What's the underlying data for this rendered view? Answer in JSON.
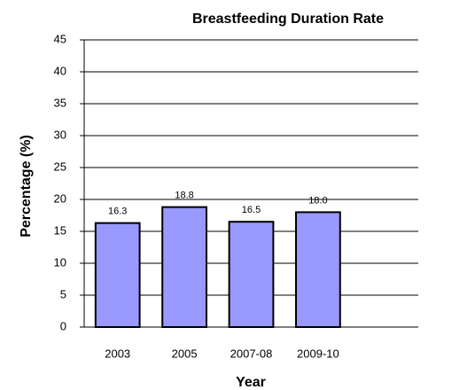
{
  "chart_data": {
    "type": "bar",
    "title": "Breastfeeding Duration Rate",
    "xlabel": "Year",
    "ylabel": "Percentage (%)",
    "categories": [
      "2003",
      "2005",
      "2007-08",
      "2009-10",
      null
    ],
    "values": [
      16.3,
      18.8,
      16.5,
      18.0,
      null
    ],
    "value_labels": [
      "16.3",
      "18.8",
      "16.5",
      "18.0",
      null
    ],
    "color": "#9999ff",
    "ylim": [
      0,
      45
    ],
    "yticks": [
      0,
      5,
      10,
      15,
      20,
      25,
      30,
      35,
      40,
      45
    ],
    "grid": true
  }
}
